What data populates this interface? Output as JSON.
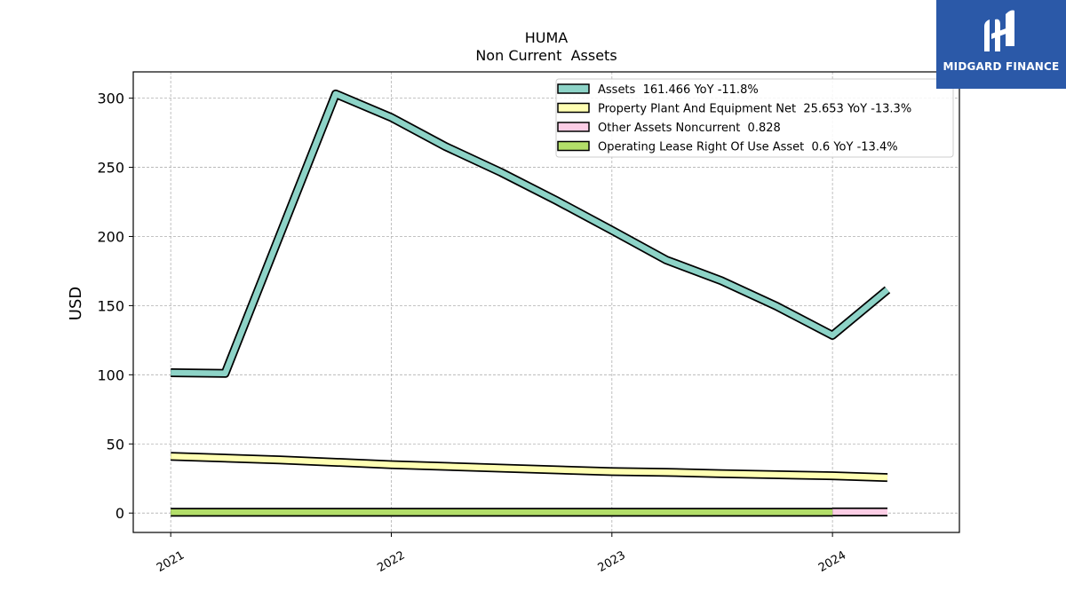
{
  "brand": {
    "name": "MIDGARD FINANCE",
    "logo_icon": "midgard-logo-icon"
  },
  "chart_data": {
    "type": "line",
    "title": "HUMA",
    "subtitle": "Non Current  Assets",
    "xlabel": "",
    "ylabel": "USD",
    "ylim": [
      -14,
      319
    ],
    "xlim": [
      "2020-10-31",
      "2024-07-29"
    ],
    "yticks": [
      0,
      50,
      100,
      150,
      200,
      250,
      300
    ],
    "xticks": [
      "2021",
      "2022",
      "2023",
      "2024"
    ],
    "grid": true,
    "legend_position": "top-right",
    "series": [
      {
        "name": "Assets  161.466 YoY -11.8%",
        "color": "#8dd3c7",
        "points": [
          [
            "2021-01-01",
            101.5
          ],
          [
            "2021-04-01",
            101.0
          ],
          [
            "2021-10-01",
            303.0
          ],
          [
            "2022-01-01",
            286.0
          ],
          [
            "2022-04-01",
            265.0
          ],
          [
            "2022-07-01",
            246.5
          ],
          [
            "2022-10-01",
            226.0
          ],
          [
            "2023-01-01",
            204.5
          ],
          [
            "2023-04-01",
            183.0
          ],
          [
            "2023-07-01",
            168.0
          ],
          [
            "2023-10-01",
            149.5
          ],
          [
            "2024-01-01",
            128.5
          ],
          [
            "2024-04-01",
            161.5
          ]
        ]
      },
      {
        "name": "Property Plant And Equipment Net  25.653 YoY -13.3%",
        "color": "#ffffb3",
        "points": [
          [
            "2021-01-01",
            41.0
          ],
          [
            "2021-07-01",
            38.5
          ],
          [
            "2022-01-01",
            35.0
          ],
          [
            "2022-07-01",
            32.5
          ],
          [
            "2023-01-01",
            30.0
          ],
          [
            "2023-04-01",
            29.5
          ],
          [
            "2023-07-01",
            28.5
          ],
          [
            "2024-01-01",
            27.0
          ],
          [
            "2024-04-01",
            25.7
          ]
        ]
      },
      {
        "name": "Other Assets Noncurrent  0.828",
        "color": "#fccde5",
        "points": [
          [
            "2024-01-01",
            0.8
          ],
          [
            "2024-04-01",
            0.8
          ]
        ]
      },
      {
        "name": "Operating Lease Right Of Use Asset  0.6 YoY -13.4%",
        "color": "#b3de69",
        "points": [
          [
            "2021-01-01",
            0.6
          ],
          [
            "2022-01-01",
            0.6
          ],
          [
            "2023-01-01",
            0.6
          ],
          [
            "2024-01-01",
            0.6
          ]
        ]
      }
    ]
  }
}
